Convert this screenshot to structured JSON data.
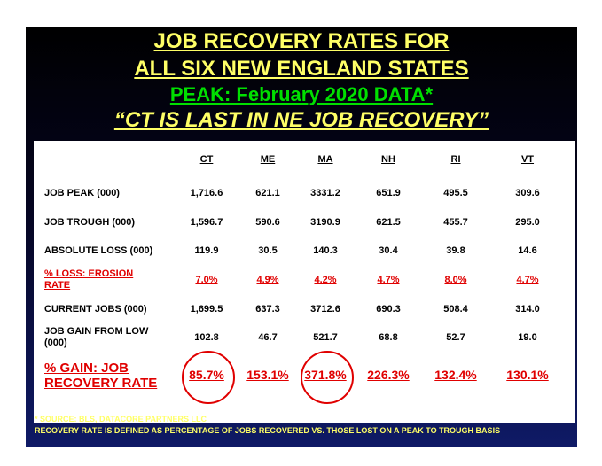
{
  "title": {
    "line1": "JOB RECOVERY RATES FOR",
    "line2": "ALL SIX NEW ENGLAND STATES",
    "line3": "PEAK: February 2020 DATA*",
    "line4": "“CT IS LAST IN NE JOB RECOVERY”"
  },
  "table": {
    "columns": [
      "CT",
      "ME",
      "MA",
      "NH",
      "RI",
      "VT"
    ],
    "rows": [
      {
        "label": "JOB PEAK (000)",
        "values": [
          "1,716.6",
          "621.1",
          "3331.2",
          "651.9",
          "495.5",
          "309.6"
        ]
      },
      {
        "label": "JOB TROUGH (000)",
        "values": [
          "1,596.7",
          "590.6",
          "3190.9",
          "621.5",
          "455.7",
          "295.0"
        ]
      },
      {
        "label": "ABSOLUTE LOSS (000)",
        "values": [
          "119.9",
          "30.5",
          "140.3",
          "30.4",
          "39.8",
          "14.6"
        ]
      },
      {
        "label_line1": "% LOSS: EROSION",
        "label_line2": "RATE",
        "values": [
          "7.0%",
          "4.9%",
          "4.2%",
          "4.7%",
          "8.0%",
          "4.7%"
        ]
      },
      {
        "label": "CURRENT JOBS (000)",
        "values": [
          "1,699.5",
          "637.3",
          "3712.6",
          "690.3",
          "508.4",
          "314.0"
        ]
      },
      {
        "label_line1": "JOB GAIN FROM LOW",
        "label_line2": "(000)",
        "values": [
          "102.8",
          "46.7",
          "521.7",
          "68.8",
          "52.7",
          "19.0"
        ]
      },
      {
        "label_line1": "% GAIN: JOB",
        "label_line2": "RECOVERY RATE",
        "values": [
          "85.7%",
          "153.1%",
          "371.8%",
          "226.3%",
          "132.4%",
          "130.1%"
        ]
      }
    ]
  },
  "notes": {
    "source": "* SOURCE: BLS, DATACORE PARTNERS LLC",
    "definition": "RECOVERY RATE IS DEFINED AS PERCENTAGE OF JOBS RECOVERED VS. THOSE LOST ON A PEAK TO TROUGH BASIS"
  },
  "colors": {
    "title_yellow": "#ffff66",
    "title_green": "#00e000",
    "highlight_red": "#e00000"
  }
}
